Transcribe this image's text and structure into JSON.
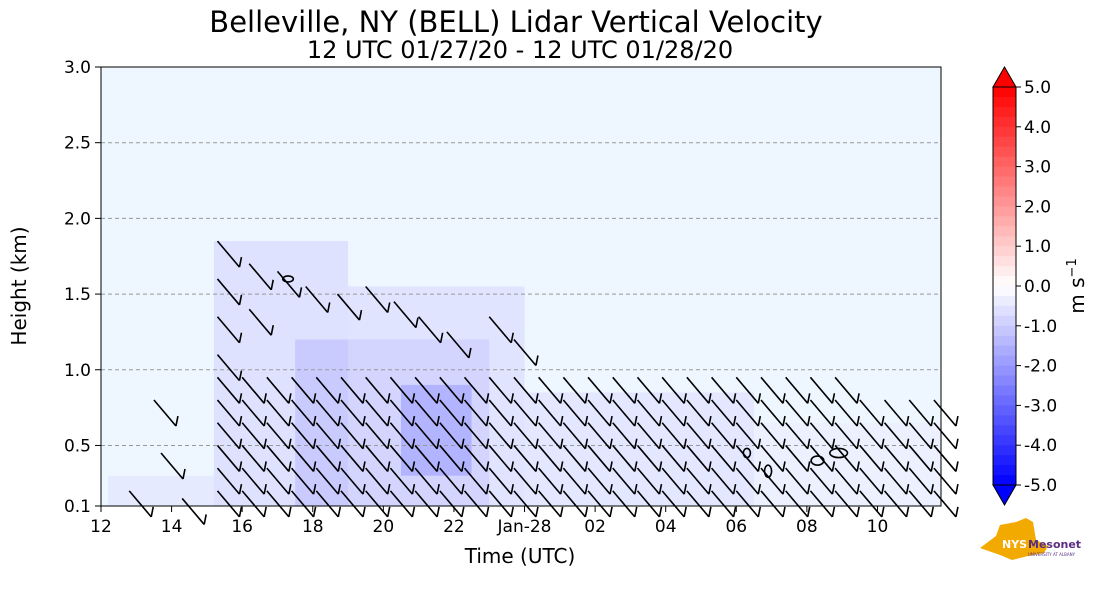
{
  "chart_data": {
    "type": "heatmap",
    "title": "Belleville, NY (BELL) Lidar Vertical Velocity",
    "subtitle": "12 UTC 01/27/20 - 12 UTC 01/28/20",
    "xlabel": "Time (UTC)",
    "ylabel": "Height (km)",
    "x_ticks": [
      "12",
      "14",
      "16",
      "18",
      "20",
      "22",
      "Jan-28",
      "02",
      "04",
      "06",
      "08",
      "10"
    ],
    "y_ticks": [
      {
        "value": 0.1,
        "label": "0.1"
      },
      {
        "value": 0.5,
        "label": "0.5"
      },
      {
        "value": 1.0,
        "label": "1.0"
      },
      {
        "value": 1.5,
        "label": "1.5"
      },
      {
        "value": 2.0,
        "label": "2.0"
      },
      {
        "value": 2.5,
        "label": "2.5"
      },
      {
        "value": 3.0,
        "label": "3.0"
      }
    ],
    "xlim_hours": [
      0,
      23.8
    ],
    "ylim": [
      0.1,
      3.0
    ],
    "gridlines_y": [
      0.5,
      1.0,
      1.5,
      2.0,
      2.5
    ],
    "colorbar": {
      "label": "m s",
      "label_exponent": "−1",
      "min": -5.0,
      "max": 5.0,
      "ticks": [
        "5.0",
        "4.0",
        "3.0",
        "2.0",
        "1.0",
        "0.0",
        "-1.0",
        "-2.0",
        "-3.0",
        "-4.0",
        "-5.0"
      ],
      "colors": {
        "positive": "#ff0000",
        "zero": "#ffffff",
        "negative": "#0000ff"
      }
    },
    "background_color": "#eef7ff",
    "data_regions": [
      {
        "t0": 0.2,
        "t1": 3.2,
        "h0": 0.1,
        "h1": 0.3,
        "w": -0.6
      },
      {
        "t0": 3.2,
        "t1": 7.0,
        "h0": 0.1,
        "h1": 1.85,
        "w": -0.9
      },
      {
        "t0": 5.5,
        "t1": 11.0,
        "h0": 0.1,
        "h1": 1.2,
        "w": -1.4
      },
      {
        "t0": 7.0,
        "t1": 12.0,
        "h0": 0.1,
        "h1": 1.55,
        "w": -0.8
      },
      {
        "t0": 8.5,
        "t1": 10.5,
        "h0": 0.3,
        "h1": 0.9,
        "w": -2.0
      },
      {
        "t0": 12.0,
        "t1": 18.5,
        "h0": 0.1,
        "h1": 0.85,
        "w": -0.7
      },
      {
        "t0": 18.5,
        "t1": 23.8,
        "h0": 0.1,
        "h1": 0.65,
        "w": -0.4
      }
    ],
    "barbs": [
      {
        "t": 3.3,
        "h": 1.85
      },
      {
        "t": 3.3,
        "h": 1.6
      },
      {
        "t": 3.3,
        "h": 1.35
      },
      {
        "t": 3.3,
        "h": 1.1
      },
      {
        "t": 4.2,
        "h": 1.7
      },
      {
        "t": 4.2,
        "h": 1.4
      },
      {
        "t": 5.0,
        "h": 1.65
      },
      {
        "t": 5.8,
        "h": 1.55
      },
      {
        "t": 6.7,
        "h": 1.5
      },
      {
        "t": 7.5,
        "h": 1.55
      },
      {
        "t": 8.3,
        "h": 1.45
      },
      {
        "t": 9.0,
        "h": 1.35
      },
      {
        "t": 9.8,
        "h": 1.25
      },
      {
        "t": 11.0,
        "h": 1.35
      },
      {
        "t": 11.7,
        "h": 1.2
      },
      {
        "t": 1.5,
        "h": 0.8
      },
      {
        "t": 1.7,
        "h": 0.45
      },
      {
        "t": 0.8,
        "h": 0.2
      },
      {
        "t": 2.3,
        "h": 0.15
      }
    ],
    "barb_rows_lower": [
      0.2,
      0.35,
      0.5,
      0.65,
      0.8,
      0.95
    ],
    "barb_times_lower": [
      3.3,
      4.0,
      4.7,
      5.4,
      6.1,
      6.8,
      7.5,
      8.2,
      8.9,
      9.6,
      10.3,
      11.0,
      11.7,
      12.4,
      13.1,
      13.8,
      14.5,
      15.2,
      15.9,
      16.6,
      17.3,
      18.0,
      18.7,
      19.4,
      20.1,
      20.8,
      21.5,
      22.2,
      22.9,
      23.6
    ],
    "contours": [
      {
        "t": 5.3,
        "h": 1.6,
        "rx": 0.15,
        "ry": 0.02
      },
      {
        "t": 18.3,
        "h": 0.45,
        "rx": 0.1,
        "ry": 0.03
      },
      {
        "t": 20.3,
        "h": 0.4,
        "rx": 0.18,
        "ry": 0.03
      },
      {
        "t": 20.9,
        "h": 0.45,
        "rx": 0.25,
        "ry": 0.03
      },
      {
        "t": 18.9,
        "h": 0.33,
        "rx": 0.1,
        "ry": 0.04
      }
    ]
  },
  "logo": {
    "text": "NYS",
    "brand": "Mesonet",
    "tagline": "UNIVERSITY AT ALBANY",
    "color": "#f2a900",
    "brand_color": "#5a2d82"
  }
}
